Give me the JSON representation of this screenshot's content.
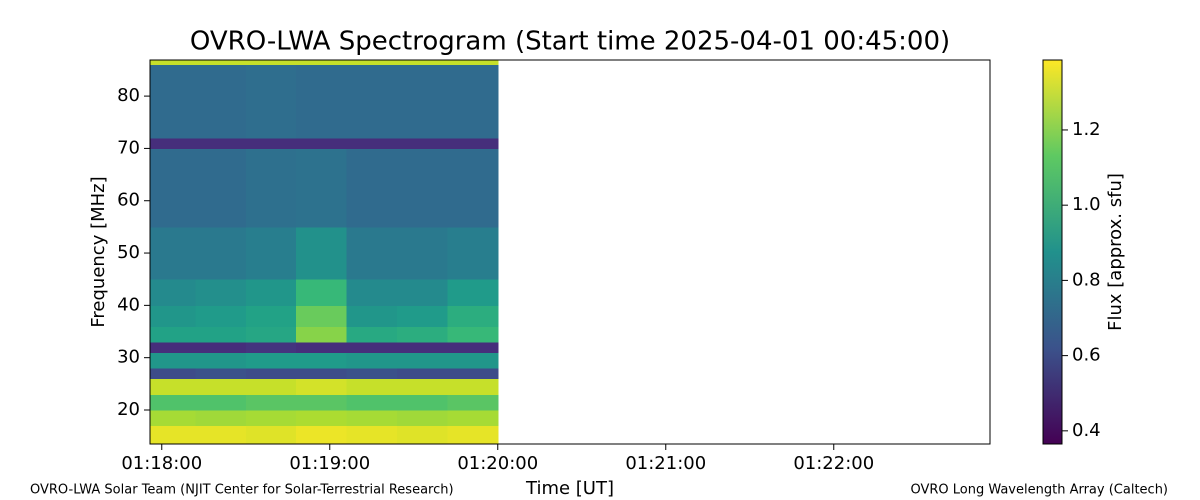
{
  "chart_data": {
    "type": "heatmap",
    "title": "OVRO-LWA Spectrogram (Start time 2025-04-01 00:45:00)",
    "xlabel": "Time [UT]",
    "ylabel": "Frequency [MHz]",
    "colorbar_label": "Flux [approx. sfu]",
    "footer_left": "OVRO-LWA Solar Team (NJIT Center for Solar-Terrestrial Research)",
    "footer_right": "OVRO Long Wavelength Array (Caltech)",
    "colormap": "viridis",
    "xlim": [
      77.93,
      82.93
    ],
    "xticks": [
      {
        "value": 78,
        "label": "01:18:00"
      },
      {
        "value": 79,
        "label": "01:19:00"
      },
      {
        "value": 80,
        "label": "01:20:00"
      },
      {
        "value": 81,
        "label": "01:21:00"
      },
      {
        "value": 82,
        "label": "01:22:00"
      }
    ],
    "ylim": [
      13.5,
      86.9
    ],
    "yticks": [
      20,
      30,
      40,
      50,
      60,
      70,
      80
    ],
    "clim": [
      0.365,
      1.386
    ],
    "cticks": [
      0.4,
      0.6,
      0.8,
      1.0,
      1.2
    ],
    "x_bins": [
      77.93,
      78.2,
      78.5,
      78.8,
      79.1,
      79.4,
      79.7,
      80.0
    ],
    "y_bins": [
      13.5,
      17,
      20,
      23,
      26,
      28,
      31,
      33,
      36,
      40,
      45,
      55,
      70,
      72,
      86,
      86.9
    ],
    "z": [
      [
        1.35,
        1.35,
        1.34,
        1.36,
        1.35,
        1.34,
        1.35
      ],
      [
        1.25,
        1.24,
        1.25,
        1.26,
        1.25,
        1.24,
        1.25
      ],
      [
        1.1,
        1.1,
        1.12,
        1.12,
        1.1,
        1.1,
        1.12
      ],
      [
        1.3,
        1.3,
        1.3,
        1.32,
        1.3,
        1.3,
        1.3
      ],
      [
        0.6,
        0.62,
        0.6,
        0.6,
        0.62,
        0.6,
        0.6
      ],
      [
        0.9,
        0.9,
        0.92,
        0.92,
        0.9,
        0.9,
        0.9
      ],
      [
        0.5,
        0.5,
        0.52,
        0.5,
        0.5,
        0.5,
        0.5
      ],
      [
        0.95,
        0.95,
        0.97,
        1.2,
        0.98,
        1.0,
        1.05
      ],
      [
        0.9,
        0.92,
        0.95,
        1.15,
        0.9,
        0.92,
        1.0
      ],
      [
        0.85,
        0.87,
        0.9,
        1.05,
        0.85,
        0.85,
        0.92
      ],
      [
        0.78,
        0.78,
        0.8,
        0.88,
        0.78,
        0.78,
        0.8
      ],
      [
        0.72,
        0.72,
        0.74,
        0.75,
        0.72,
        0.72,
        0.72
      ],
      [
        0.5,
        0.5,
        0.5,
        0.5,
        0.5,
        0.5,
        0.5
      ],
      [
        0.72,
        0.72,
        0.73,
        0.72,
        0.72,
        0.72,
        0.72
      ],
      [
        1.3,
        1.3,
        1.3,
        1.3,
        1.3,
        1.3,
        1.3
      ]
    ]
  }
}
